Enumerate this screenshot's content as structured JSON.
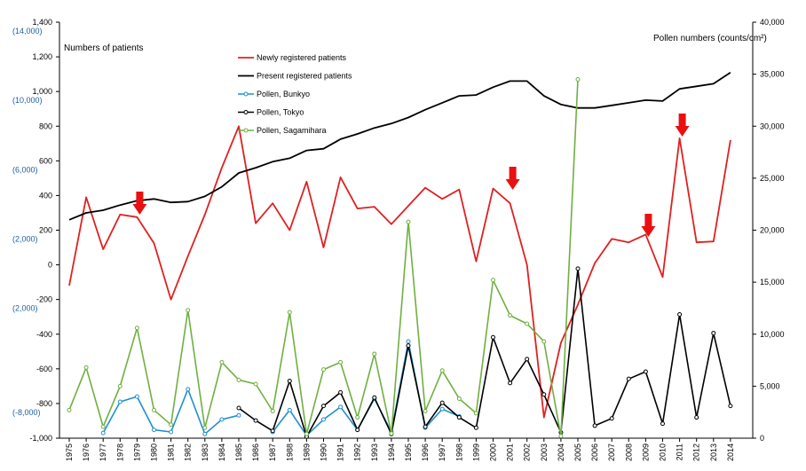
{
  "chart_data": {
    "type": "line",
    "left_axis_label": "Numbers of patients",
    "right_axis_label": "Pollen numbers (counts/cm²)",
    "y_left": {
      "min": -1000,
      "max": 1400,
      "ticks": [
        "-1,000",
        "-800",
        "-600",
        "-400",
        "-200",
        "0",
        "200",
        "400",
        "600",
        "800",
        "1,000",
        "1,200",
        "1,400"
      ],
      "values": [
        -1000,
        -800,
        -600,
        -400,
        -200,
        0,
        200,
        400,
        600,
        800,
        1000,
        1200,
        1400
      ]
    },
    "y_left_alt": [
      {
        "label": "(14,000)",
        "value": 1400
      },
      {
        "label": "(10,000)",
        "value": 1000
      },
      {
        "label": "(6,000)",
        "value": 600
      },
      {
        "label": "(2,000)",
        "value": 200
      },
      {
        "label": "(2,000)",
        "value": -200
      },
      {
        "label": "(-8,000)",
        "value": -800
      }
    ],
    "y_right": {
      "min": 0,
      "max": 40000,
      "ticks": [
        "0",
        "5,000",
        "10,000",
        "15,000",
        "20,000",
        "25,000",
        "30,000",
        "35,000",
        "40,000"
      ],
      "values": [
        0,
        5000,
        10000,
        15000,
        20000,
        25000,
        30000,
        35000,
        40000
      ]
    },
    "x": [
      "1975",
      "1976",
      "1977",
      "1978",
      "1979",
      "1980",
      "1981",
      "1982",
      "1983",
      "1984",
      "1985",
      "1986",
      "1987",
      "1988",
      "1989",
      "1990",
      "1991",
      "1992",
      "1993",
      "1994",
      "1995",
      "1996",
      "1997",
      "1998",
      "1999",
      "2000",
      "2001",
      "2002",
      "2003",
      "2004",
      "2005",
      "2006",
      "2007",
      "2008",
      "2009",
      "2010",
      "2011",
      "2012",
      "2013",
      "2014"
    ],
    "series": [
      {
        "name": "Newly registered patients",
        "color": "#e02020",
        "axis": "left",
        "markers": false,
        "values": [
          -120,
          390,
          90,
          290,
          275,
          125,
          -200,
          50,
          290,
          560,
          800,
          240,
          355,
          200,
          480,
          100,
          505,
          325,
          335,
          235,
          340,
          445,
          380,
          435,
          20,
          440,
          355,
          0,
          -880,
          -450,
          -230,
          10,
          150,
          130,
          175,
          -70,
          730,
          130,
          135,
          720
        ]
      },
      {
        "name": "Present registered patients",
        "color": "#000000",
        "axis": "left",
        "markers": false,
        "values": [
          260,
          300,
          315,
          345,
          370,
          380,
          360,
          365,
          395,
          450,
          530,
          560,
          595,
          615,
          660,
          670,
          725,
          755,
          790,
          815,
          850,
          895,
          935,
          975,
          980,
          1025,
          1060,
          1060,
          975,
          925,
          905,
          905,
          920,
          935,
          950,
          945,
          1015,
          1030,
          1045,
          1110
        ]
      },
      {
        "name": "Pollen, Bunkyo",
        "color": "#1f8fd0",
        "axis": "right",
        "markers": true,
        "values": [
          null,
          null,
          500,
          3500,
          4000,
          800,
          600,
          4700,
          400,
          1800,
          2200,
          null,
          600,
          2700,
          250,
          1800,
          3000,
          800,
          3800,
          600,
          9300,
          1000,
          2800,
          2100,
          null,
          null,
          null,
          null,
          null,
          null,
          null,
          null,
          null,
          null,
          null,
          null,
          null,
          null,
          null,
          null
        ]
      },
      {
        "name": "Pollen, Tokyo",
        "color": "#000000",
        "axis": "right",
        "markers": true,
        "values": [
          null,
          null,
          null,
          null,
          null,
          null,
          null,
          null,
          null,
          null,
          2900,
          1700,
          700,
          5500,
          150,
          3100,
          4400,
          800,
          3900,
          400,
          8900,
          1100,
          3400,
          2000,
          1000,
          9700,
          5300,
          7600,
          4200,
          550,
          16300,
          1200,
          1900,
          5700,
          6400,
          1400,
          11900,
          2000,
          10100,
          3100
        ]
      },
      {
        "name": "Pollen, Sagamihara",
        "color": "#6fb040",
        "axis": "right",
        "markers": true,
        "values": [
          2700,
          6800,
          1100,
          5000,
          10600,
          2700,
          1300,
          12300,
          1000,
          7300,
          5600,
          5200,
          2600,
          12100,
          400,
          6600,
          7300,
          2000,
          8100,
          450,
          20800,
          2600,
          6500,
          3800,
          2400,
          15200,
          11800,
          11000,
          9300,
          200,
          34500,
          null,
          null,
          null,
          null,
          null,
          null,
          null,
          null,
          null
        ]
      }
    ],
    "annotations": [
      {
        "type": "down-arrow",
        "x": "1979",
        "color": "#e81010"
      },
      {
        "type": "down-arrow",
        "x": "2001",
        "color": "#e81010"
      },
      {
        "type": "down-arrow",
        "x": "2009",
        "color": "#e81010"
      },
      {
        "type": "down-arrow",
        "x": "2011",
        "color": "#e81010"
      }
    ],
    "grid": false,
    "legend_position": "top-center"
  }
}
